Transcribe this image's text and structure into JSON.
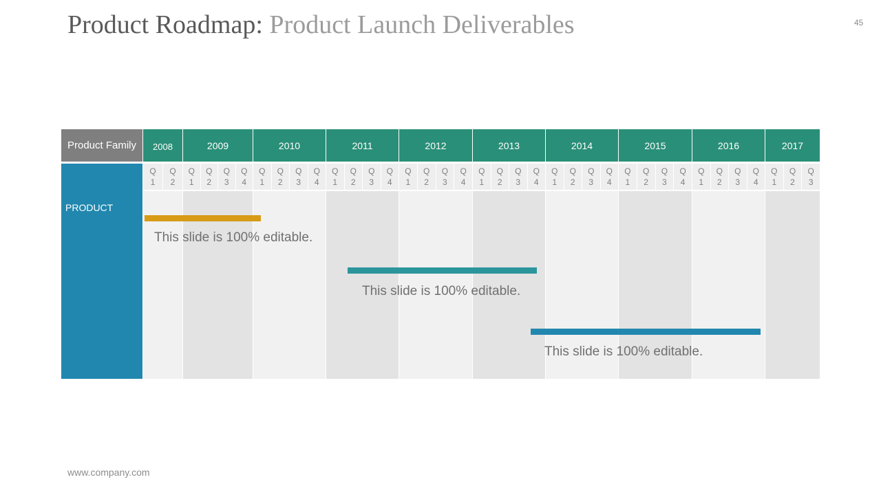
{
  "title": {
    "main": "Product Roadmap:",
    "sub": "Product Launch Deliverables"
  },
  "page_number": "45",
  "footer": "www.company.com",
  "table": {
    "family_header": "Product Family",
    "family_label": "PRODUCT",
    "years": [
      "2008",
      "2009",
      "2010",
      "2011",
      "2012",
      "2013",
      "2014",
      "2015",
      "2016",
      "2017"
    ],
    "quarter_letter": "Q",
    "quarters": [
      "1",
      "2",
      "1",
      "2",
      "3",
      "4",
      "1",
      "2",
      "3",
      "4",
      "1",
      "2",
      "3",
      "4",
      "1",
      "2",
      "3",
      "4",
      "1",
      "2",
      "3",
      "4",
      "1",
      "2",
      "3",
      "4",
      "1",
      "2",
      "3",
      "4",
      "1",
      "2",
      "3",
      "4",
      "1",
      "2",
      "3"
    ]
  },
  "bars": [
    {
      "label": "This slide is 100% editable.",
      "color": "#d89b16"
    },
    {
      "label": "This slide is 100% editable.",
      "color": "#2b959c"
    },
    {
      "label": "This slide is 100% editable.",
      "color": "#2187ae"
    }
  ],
  "colors": {
    "year_header": "#2a8f78",
    "family_header": "#7f7f7f",
    "family_cell": "#2187ae"
  }
}
